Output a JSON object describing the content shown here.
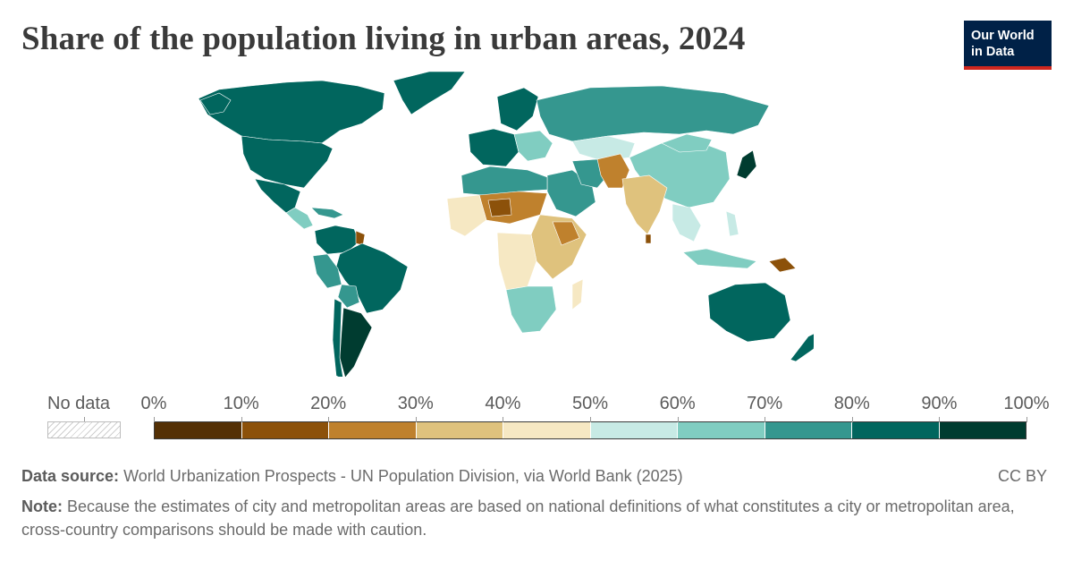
{
  "title": "Share of the population living in urban areas, 2024",
  "logo": {
    "line1": "Our World",
    "line2": "in Data"
  },
  "legend": {
    "no_data_label": "No data",
    "ticks": [
      "0%",
      "10%",
      "20%",
      "30%",
      "40%",
      "50%",
      "60%",
      "70%",
      "80%",
      "90%",
      "100%"
    ],
    "bins": [
      {
        "range": "0–10%",
        "color": "#543005"
      },
      {
        "range": "10–20%",
        "color": "#8c510a"
      },
      {
        "range": "20–30%",
        "color": "#bf812d"
      },
      {
        "range": "30–40%",
        "color": "#dfc27d"
      },
      {
        "range": "40–50%",
        "color": "#f6e8c3"
      },
      {
        "range": "50–60%",
        "color": "#c7eae5"
      },
      {
        "range": "60–70%",
        "color": "#80cdc1"
      },
      {
        "range": "70–80%",
        "color": "#35978f"
      },
      {
        "range": "80–90%",
        "color": "#01665e"
      },
      {
        "range": "90–100%",
        "color": "#003c30"
      }
    ]
  },
  "footer": {
    "source_label": "Data source:",
    "source_text": "World Urbanization Prospects - UN Population Division, via World Bank (2025)",
    "license": "CC BY",
    "note_label": "Note:",
    "note_text": "Because the estimates of city and metropolitan areas are based on national definitions of what constitutes a city or metropolitan area, cross-country comparisons should be made with caution."
  },
  "colors": {
    "logo_bg": "#002147",
    "logo_accent": "#ce261e"
  },
  "map_regions": [
    {
      "region": "Canada",
      "bin": "80–90%"
    },
    {
      "region": "United States",
      "bin": "80–90%"
    },
    {
      "region": "Mexico",
      "bin": "80–90%"
    },
    {
      "region": "Brazil",
      "bin": "80–90%"
    },
    {
      "region": "Argentina",
      "bin": "90–100%"
    },
    {
      "region": "Russia",
      "bin": "70–80%"
    },
    {
      "region": "China",
      "bin": "60–70%"
    },
    {
      "region": "India",
      "bin": "30–40%"
    },
    {
      "region": "Australia",
      "bin": "80–90%"
    },
    {
      "region": "Niger",
      "bin": "10–20%"
    },
    {
      "region": "Papua New Guinea",
      "bin": "10–20%"
    },
    {
      "region": "Japan",
      "bin": "90–100%"
    }
  ]
}
